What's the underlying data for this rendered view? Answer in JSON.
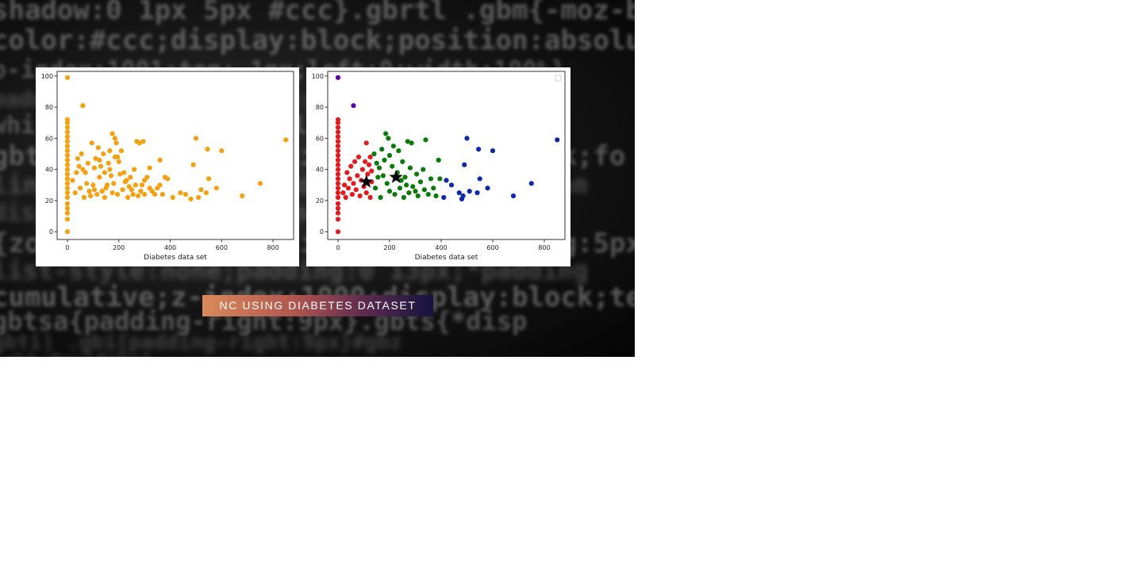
{
  "caption": "NC USING DIABETES DATASET",
  "background_code_lines": [
    "shadow:0 1px 5px #ccc}.gbrtl .gbm{-moz-bo",
    "color:#ccc;display:block;position:absolu",
    "o-index:1001;top:-1px;left:0;width:100%}",
    "padding:0 8px;font-size:13px;line-h:27px",
    "white-space:nowrap;color:#ccc;float:righ",
    "gbtc{position:relative;display:block;fo",
    "line-height:27px;padding:0;margin:0;non",
    "display:block}.gbtc{padding:0 7px;backg",
    "{zoom:1;display:inline-block;padding:5px",
    "list-style:none;padding:0 13px;*padding",
    "cumulative;z-index:1000;display:block;text-de",
    "gbtsa{padding-right:9px}.gbts{*disp",
    "gbti) .gbi{padding-right:9px}#gbz",
    "ight:9px}#gbq1"
  ],
  "chart_data": [
    {
      "type": "scatter",
      "title": "",
      "xlabel": "Diabetes data set",
      "ylabel": "",
      "xlim": [
        -40,
        880
      ],
      "ylim": [
        -5,
        103
      ],
      "xticks": [
        0,
        200,
        400,
        600,
        800
      ],
      "yticks": [
        0,
        20,
        40,
        60,
        80,
        100
      ],
      "legend": "none",
      "grid": false,
      "series": [
        {
          "color": "#f5a00f",
          "points": [
            [
              0,
              99
            ],
            [
              0,
              0
            ],
            [
              0,
              8
            ],
            [
              0,
              12
            ],
            [
              0,
              15
            ],
            [
              0,
              18
            ],
            [
              0,
              22
            ],
            [
              0,
              25
            ],
            [
              0,
              28
            ],
            [
              0,
              31
            ],
            [
              0,
              34
            ],
            [
              0,
              37
            ],
            [
              0,
              40
            ],
            [
              0,
              43
            ],
            [
              0,
              46
            ],
            [
              0,
              49
            ],
            [
              0,
              52
            ],
            [
              0,
              55
            ],
            [
              0,
              58
            ],
            [
              0,
              61
            ],
            [
              0,
              64
            ],
            [
              0,
              67
            ],
            [
              0,
              70
            ],
            [
              0,
              72
            ],
            [
              60,
              81
            ],
            [
              40,
              47
            ],
            [
              55,
              50
            ],
            [
              70,
              38
            ],
            [
              80,
              44
            ],
            [
              95,
              57
            ],
            [
              100,
              30
            ],
            [
              110,
              47
            ],
            [
              120,
              54
            ],
            [
              125,
              35
            ],
            [
              130,
              42
            ],
            [
              140,
              50
            ],
            [
              150,
              28
            ],
            [
              160,
              44
            ],
            [
              165,
              40
            ],
            [
              170,
              36
            ],
            [
              175,
              63
            ],
            [
              180,
              31
            ],
            [
              185,
              60
            ],
            [
              190,
              57
            ],
            [
              195,
              48
            ],
            [
              200,
              45
            ],
            [
              210,
              52
            ],
            [
              220,
              38
            ],
            [
              230,
              33
            ],
            [
              240,
              29
            ],
            [
              250,
              27
            ],
            [
              260,
              40
            ],
            [
              270,
              58
            ],
            [
              280,
              57
            ],
            [
              290,
              30
            ],
            [
              295,
              58
            ],
            [
              300,
              24
            ],
            [
              310,
              35
            ],
            [
              320,
              41
            ],
            [
              330,
              26
            ],
            [
              350,
              28
            ],
            [
              360,
              46
            ],
            [
              370,
              24
            ],
            [
              380,
              35
            ],
            [
              390,
              34
            ],
            [
              410,
              22
            ],
            [
              440,
              25
            ],
            [
              460,
              24
            ],
            [
              480,
              21
            ],
            [
              490,
              43
            ],
            [
              500,
              60
            ],
            [
              510,
              22
            ],
            [
              520,
              27
            ],
            [
              540,
              25
            ],
            [
              545,
              53
            ],
            [
              550,
              34
            ],
            [
              580,
              28
            ],
            [
              600,
              52
            ],
            [
              680,
              23
            ],
            [
              750,
              31
            ],
            [
              850,
              59
            ],
            [
              30,
              25
            ],
            [
              50,
              28
            ],
            [
              65,
              22
            ],
            [
              75,
              31
            ],
            [
              85,
              26
            ],
            [
              90,
              23
            ],
            [
              105,
              27
            ],
            [
              115,
              24
            ],
            [
              135,
              26
            ],
            [
              145,
              22
            ],
            [
              155,
              30
            ],
            [
              175,
              25
            ],
            [
              195,
              24
            ],
            [
              215,
              27
            ],
            [
              235,
              22
            ],
            [
              255,
              24
            ],
            [
              275,
              23
            ],
            [
              20,
              33
            ],
            [
              35,
              38
            ],
            [
              45,
              42
            ],
            [
              60,
              40
            ],
            [
              105,
              41
            ],
            [
              125,
              46
            ],
            [
              145,
              38
            ],
            [
              165,
              52
            ],
            [
              185,
              48
            ],
            [
              205,
              37
            ],
            [
              225,
              32
            ],
            [
              245,
              35
            ],
            [
              265,
              30
            ],
            [
              285,
              26
            ],
            [
              300,
              33
            ],
            [
              320,
              28
            ],
            [
              340,
              24
            ],
            [
              360,
              30
            ]
          ]
        }
      ]
    },
    {
      "type": "scatter",
      "title": "",
      "xlabel": "Diabetes data set",
      "ylabel": "",
      "xlim": [
        -40,
        880
      ],
      "ylim": [
        -5,
        103
      ],
      "xticks": [
        0,
        200,
        400,
        600,
        800
      ],
      "yticks": [
        0,
        20,
        40,
        60,
        80,
        100
      ],
      "legend": "top-right",
      "grid": false,
      "series": [
        {
          "color": "#e41a1c",
          "points": [
            [
              0,
              0
            ],
            [
              0,
              8
            ],
            [
              0,
              12
            ],
            [
              0,
              15
            ],
            [
              0,
              18
            ],
            [
              0,
              22
            ],
            [
              0,
              25
            ],
            [
              0,
              28
            ],
            [
              0,
              31
            ],
            [
              0,
              34
            ],
            [
              0,
              37
            ],
            [
              0,
              40
            ],
            [
              0,
              43
            ],
            [
              0,
              46
            ],
            [
              0,
              49
            ],
            [
              0,
              52
            ],
            [
              0,
              55
            ],
            [
              0,
              58
            ],
            [
              0,
              61
            ],
            [
              0,
              64
            ],
            [
              0,
              67
            ],
            [
              0,
              70
            ],
            [
              0,
              72
            ],
            [
              20,
              25
            ],
            [
              25,
              30
            ],
            [
              30,
              22
            ],
            [
              35,
              38
            ],
            [
              40,
              28
            ],
            [
              45,
              34
            ],
            [
              50,
              42
            ],
            [
              55,
              24
            ],
            [
              60,
              31
            ],
            [
              65,
              45
            ],
            [
              70,
              27
            ],
            [
              75,
              36
            ],
            [
              80,
              48
            ],
            [
              85,
              23
            ],
            [
              90,
              33
            ],
            [
              95,
              40
            ],
            [
              100,
              29
            ],
            [
              105,
              45
            ],
            [
              110,
              25
            ],
            [
              110,
              57
            ],
            [
              115,
              37
            ],
            [
              120,
              43
            ],
            [
              125,
              22
            ],
            [
              125,
              48
            ],
            [
              130,
              32
            ],
            [
              130,
              39
            ]
          ]
        },
        {
          "color": "#0a7a0a",
          "points": [
            [
              140,
              50
            ],
            [
              145,
              28
            ],
            [
              150,
              44
            ],
            [
              155,
              35
            ],
            [
              160,
              41
            ],
            [
              165,
              22
            ],
            [
              170,
              53
            ],
            [
              175,
              36
            ],
            [
              180,
              46
            ],
            [
              185,
              63
            ],
            [
              190,
              31
            ],
            [
              195,
              60
            ],
            [
              200,
              26
            ],
            [
              200,
              49
            ],
            [
              210,
              42
            ],
            [
              215,
              55
            ],
            [
              220,
              24
            ],
            [
              230,
              38
            ],
            [
              235,
              52
            ],
            [
              240,
              28
            ],
            [
              245,
              33
            ],
            [
              250,
              45
            ],
            [
              255,
              22
            ],
            [
              260,
              35
            ],
            [
              265,
              30
            ],
            [
              270,
              58
            ],
            [
              275,
              25
            ],
            [
              280,
              41
            ],
            [
              285,
              57
            ],
            [
              290,
              29
            ],
            [
              300,
              26
            ],
            [
              305,
              37
            ],
            [
              310,
              23
            ],
            [
              320,
              32
            ],
            [
              330,
              40
            ],
            [
              335,
              27
            ],
            [
              340,
              59
            ],
            [
              350,
              24
            ],
            [
              360,
              34
            ],
            [
              370,
              28
            ],
            [
              380,
              23
            ],
            [
              390,
              46
            ],
            [
              395,
              34
            ]
          ]
        },
        {
          "color": "#0b2aa8",
          "points": [
            [
              410,
              22
            ],
            [
              420,
              33
            ],
            [
              440,
              30
            ],
            [
              470,
              25
            ],
            [
              480,
              21
            ],
            [
              485,
              23
            ],
            [
              490,
              43
            ],
            [
              500,
              60
            ],
            [
              510,
              26
            ],
            [
              540,
              25
            ],
            [
              545,
              53
            ],
            [
              550,
              34
            ],
            [
              580,
              28
            ],
            [
              600,
              52
            ],
            [
              680,
              23
            ],
            [
              750,
              31
            ],
            [
              850,
              59
            ]
          ]
        },
        {
          "color": "#5b00b8",
          "points": [
            [
              0,
              99
            ],
            [
              60,
              81
            ]
          ]
        }
      ],
      "centroids": [
        [
          110,
          32
        ],
        [
          225,
          35
        ]
      ]
    }
  ]
}
